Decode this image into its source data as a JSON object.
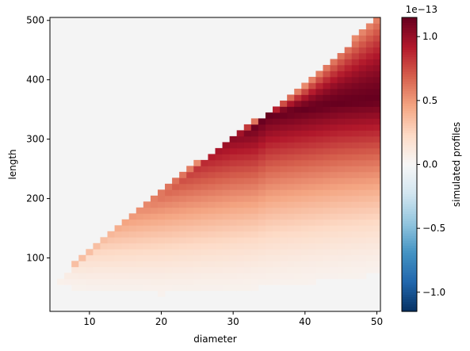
{
  "chart_data": {
    "type": "heatmap",
    "xlabel": "diameter",
    "ylabel": "length",
    "xlim": [
      4.5,
      50.5
    ],
    "ylim": [
      10,
      505
    ],
    "x_ticks": [
      10,
      20,
      30,
      40,
      50
    ],
    "y_ticks": [
      100,
      200,
      300,
      400,
      500
    ],
    "x_tick_labels": [
      "10",
      "20",
      "30",
      "40",
      "50"
    ],
    "y_tick_labels": [
      "100",
      "200",
      "300",
      "400",
      "500"
    ],
    "x_values": {
      "start": 5,
      "stop": 50,
      "step": 1
    },
    "y_values": {
      "start": 10,
      "stop": 500,
      "step": 10
    },
    "colorbar": {
      "label": "simulated profiles",
      "multiplier_label": "1e−13",
      "range": [
        -1.15,
        1.15
      ],
      "ticks": [
        -1.0,
        -0.5,
        0.0,
        0.5,
        1.0
      ],
      "tick_labels": [
        "−1.0",
        "−0.5",
        "0.0",
        "0.5",
        "1.0"
      ],
      "colormap": "RdBu_r"
    },
    "missing_color": "#f4f4f4",
    "data_region": {
      "lower_boundary": [
        [
          5,
          55
        ],
        [
          10,
          45
        ],
        [
          20,
          40
        ],
        [
          30,
          45
        ],
        [
          40,
          58
        ],
        [
          50,
          72
        ]
      ],
      "upper_boundary": [
        [
          5,
          55
        ],
        [
          10,
          115
        ],
        [
          20,
          215
        ],
        [
          30,
          305
        ],
        [
          40,
          390
        ],
        [
          50,
          505
        ]
      ],
      "ridge": [
        [
          5,
          60
        ],
        [
          10,
          110
        ],
        [
          20,
          205
        ],
        [
          30,
          300
        ],
        [
          35,
          340
        ],
        [
          40,
          350
        ],
        [
          45,
          360
        ],
        [
          50,
          365
        ]
      ],
      "peak_value": 1.15,
      "edge_value": 0.05
    }
  }
}
